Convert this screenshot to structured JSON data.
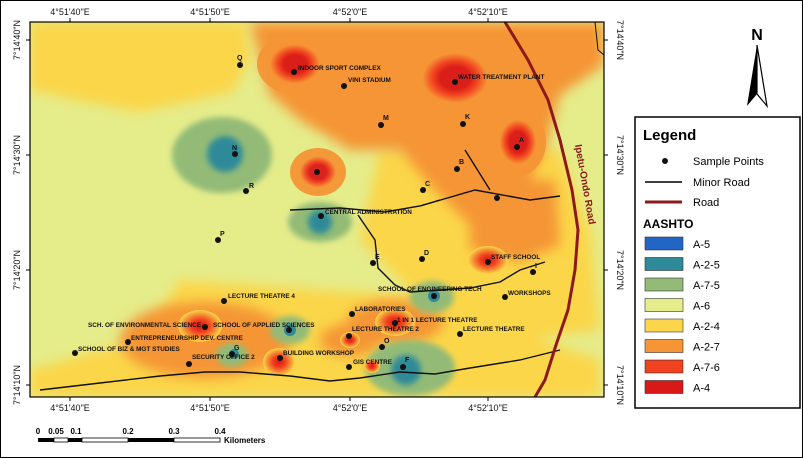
{
  "grid": {
    "top_labels": [
      "4°51'40\"E",
      "4°51'50\"E",
      "4°52'0\"E",
      "4°52'10\"E"
    ],
    "bottom_labels": [
      "4°51'40\"E",
      "4°51'50\"E",
      "4°52'0\"E",
      "4°52'10\"E"
    ],
    "left_labels": [
      "7°14'40\"N",
      "7°14'30\"N",
      "7°14'20\"N",
      "7°14'10\"N"
    ],
    "right_labels": [
      "7°14'40\"N",
      "7°14'30\"N",
      "7°14'20\"N",
      "7°14'10\"N"
    ]
  },
  "road_label": "Ipetu-Ondo Road",
  "north_arrow": {
    "label": "N"
  },
  "scale_bar": {
    "ticks": [
      "0",
      "0.05",
      "0.1",
      "0.2",
      "0.3",
      "0.4"
    ],
    "unit": "Kilometers"
  },
  "legend": {
    "title": "Legend",
    "symbols": [
      {
        "label": "Sample Points",
        "kind": "dot"
      },
      {
        "label": "Minor Road",
        "kind": "line",
        "color": "#000000"
      },
      {
        "label": "Road",
        "kind": "line",
        "color": "#8b1a1a"
      }
    ],
    "classes_title": "AASHTO",
    "classes": [
      {
        "label": "A-5",
        "color": "#2166c4"
      },
      {
        "label": "A-2-5",
        "color": "#2e8a99"
      },
      {
        "label": "A-7-5",
        "color": "#93bb77"
      },
      {
        "label": "A-6",
        "color": "#e5ec8a"
      },
      {
        "label": "A-2-4",
        "color": "#fbd64a"
      },
      {
        "label": "A-2-7",
        "color": "#f59535"
      },
      {
        "label": "A-7-6",
        "color": "#f2411f"
      },
      {
        "label": "A-4",
        "color": "#d91818"
      }
    ]
  },
  "places": [
    {
      "label": "INDOOR SPORT COMPLEX"
    },
    {
      "label": "VINI STADIUM"
    },
    {
      "label": "WATER TREATMENT PLANT"
    },
    {
      "label": "CENTRAL ADMINISTRATION"
    },
    {
      "label": "STAFF SCHOOL"
    },
    {
      "label": "LECTURE THEATRE 4"
    },
    {
      "label": "SCHOOL OF ENGINEERING TECH"
    },
    {
      "label": "WORKSHOPS"
    },
    {
      "label": "LABORATORIES"
    },
    {
      "label": "SCH. OF ENVIRONMENTAL SCIENCE"
    },
    {
      "label": "SCHOOL OF APPLIED SCIENCES"
    },
    {
      "label": "1 IN 1 LECTURE THEATRE"
    },
    {
      "label": "ENTREPRENEURSHIP DEV. CENTRE"
    },
    {
      "label": "LECTURE THEATRE 2"
    },
    {
      "label": "LECTURE THEATRE"
    },
    {
      "label": "SCHOOL OF BIZ & MGT STUDIES"
    },
    {
      "label": "SECURITY OFFICE 2"
    },
    {
      "label": "BUILDING WORKSHOP"
    },
    {
      "label": "GIS CENTRE"
    }
  ],
  "points": [
    {
      "label": "Q"
    },
    {
      "label": "M"
    },
    {
      "label": "K"
    },
    {
      "label": "A"
    },
    {
      "label": "N"
    },
    {
      "label": "B"
    },
    {
      "label": "C"
    },
    {
      "label": "R"
    },
    {
      "label": "P"
    },
    {
      "label": "D"
    },
    {
      "label": "E"
    },
    {
      "label": "I"
    },
    {
      "label": "O"
    },
    {
      "label": "F"
    },
    {
      "label": "G"
    }
  ]
}
